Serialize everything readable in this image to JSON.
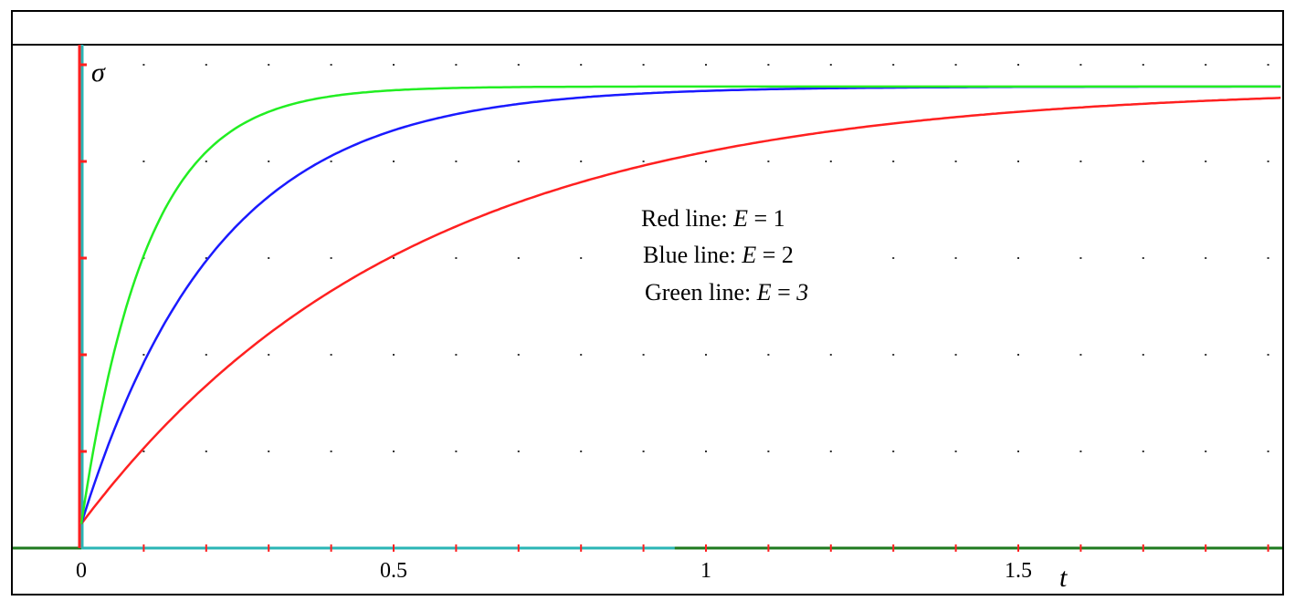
{
  "chart_data": {
    "type": "line",
    "xlabel": "t",
    "ylabel": "σ",
    "xlim": [
      0,
      1.92
    ],
    "ylim": [
      0,
      1.0
    ],
    "x_ticks": [
      0,
      0.5,
      1,
      1.5
    ],
    "x_tick_labels": [
      "0",
      "0.5",
      "1",
      "1.5"
    ],
    "x_minor_step": 0.1,
    "y_grid_levels": [
      0.2,
      0.4,
      0.6,
      0.8,
      1.0
    ],
    "grid": "dotted",
    "legend_placement": "center-right",
    "legend": [
      {
        "prefix": "Red line: ",
        "var": "E",
        "suffix": " = 1",
        "var2": ""
      },
      {
        "prefix": "Blue line: ",
        "var": "E",
        "suffix": " = 2",
        "var2": ""
      },
      {
        "prefix": "Green line: ",
        "var": "E",
        "suffix": " = ",
        "var2": "3"
      }
    ],
    "series": [
      {
        "color": "#ff2020",
        "y0": 0.05,
        "y_inf": 0.955,
        "rate": 1.9
      },
      {
        "color": "#1a1aff",
        "y0": 0.05,
        "y_inf": 0.955,
        "rate": 4.6
      },
      {
        "color": "#22ee22",
        "y0": 0.05,
        "y_inf": 0.955,
        "rate": 9.5
      }
    ],
    "colors": {
      "frame": "#000000",
      "y_axis": "#2ab5b5",
      "x_axis": "#2ab5b5",
      "axis_tick": "#ff2020",
      "grid_dot": "#333333",
      "baseline": "#1e7a1e"
    }
  }
}
